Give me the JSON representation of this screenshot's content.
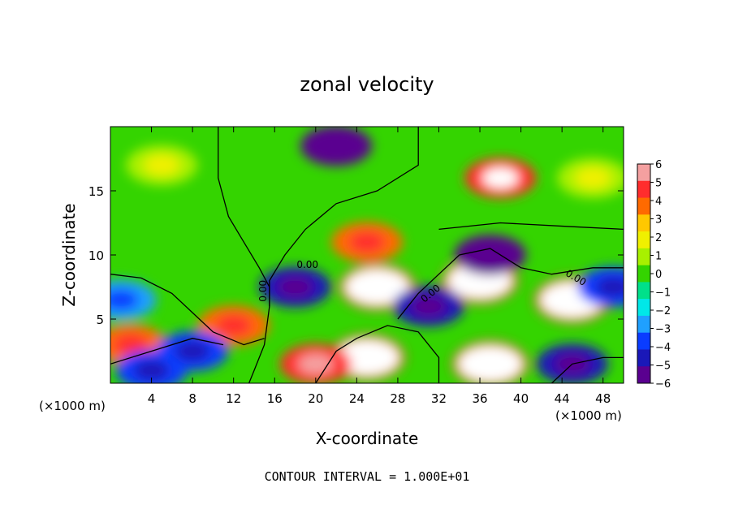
{
  "chart_data": {
    "type": "heatmap",
    "title": "zonal velocity",
    "xlabel": "X-coordinate",
    "ylabel": "Z-coordinate",
    "x_unit_label": "(×1000 m)",
    "x_ticks": [
      4,
      8,
      12,
      16,
      20,
      24,
      28,
      32,
      36,
      40,
      44,
      48
    ],
    "y_ticks": [
      5,
      10,
      15
    ],
    "xlim": [
      0,
      50
    ],
    "ylim": [
      0,
      20
    ],
    "footer": "CONTOUR INTERVAL = 1.000E+01",
    "colorbar": {
      "ticks": [
        "6",
        "5",
        "4",
        "3",
        "2",
        "1",
        "0",
        "−1",
        "−2",
        "−3",
        "−4",
        "−5",
        "−6"
      ],
      "range": [
        -6,
        6
      ],
      "colors": [
        "#f4a0a0",
        "#ff2d2d",
        "#ff6a00",
        "#ffc800",
        "#f0f000",
        "#a8f000",
        "#34d400",
        "#00e08a",
        "#00e8e8",
        "#1fa0ff",
        "#0a3cff",
        "#1a18b8",
        "#5a0090"
      ]
    },
    "contour_labels": [
      "0.00",
      "0.00",
      "0.00",
      "0.00"
    ],
    "features": [
      {
        "x": 22,
        "z": 18.5,
        "u": -5.5
      },
      {
        "x": 38,
        "z": 16.0,
        "u": 5.5
      },
      {
        "x": 25,
        "z": 11.0,
        "u": 4.5
      },
      {
        "x": 26,
        "z": 7.5,
        "u": 9
      },
      {
        "x": 36,
        "z": 8.0,
        "u": 9
      },
      {
        "x": 45,
        "z": 6.5,
        "u": 9
      },
      {
        "x": 18,
        "z": 7.5,
        "u": -4.5
      },
      {
        "x": 31,
        "z": 6.0,
        "u": -4.5
      },
      {
        "x": 37,
        "z": 10.0,
        "u": -5.5
      },
      {
        "x": 25,
        "z": 2.0,
        "u": 8
      },
      {
        "x": 37,
        "z": 1.5,
        "u": 8
      },
      {
        "x": 2,
        "z": 3.0,
        "u": 4
      },
      {
        "x": 12,
        "z": 4.5,
        "u": 4
      },
      {
        "x": 8,
        "z": 2.5,
        "u": -3.5
      },
      {
        "x": 1,
        "z": 6.5,
        "u": -3
      },
      {
        "x": 4,
        "z": 1.0,
        "u": -4
      },
      {
        "x": 45,
        "z": 1.5,
        "u": -5
      },
      {
        "x": 49,
        "z": 7.5,
        "u": -4
      },
      {
        "x": 20,
        "z": 1.5,
        "u": 5
      },
      {
        "x": 5,
        "z": 17.0,
        "u": 1.5
      },
      {
        "x": 47,
        "z": 16.0,
        "u": 1.5
      }
    ]
  }
}
